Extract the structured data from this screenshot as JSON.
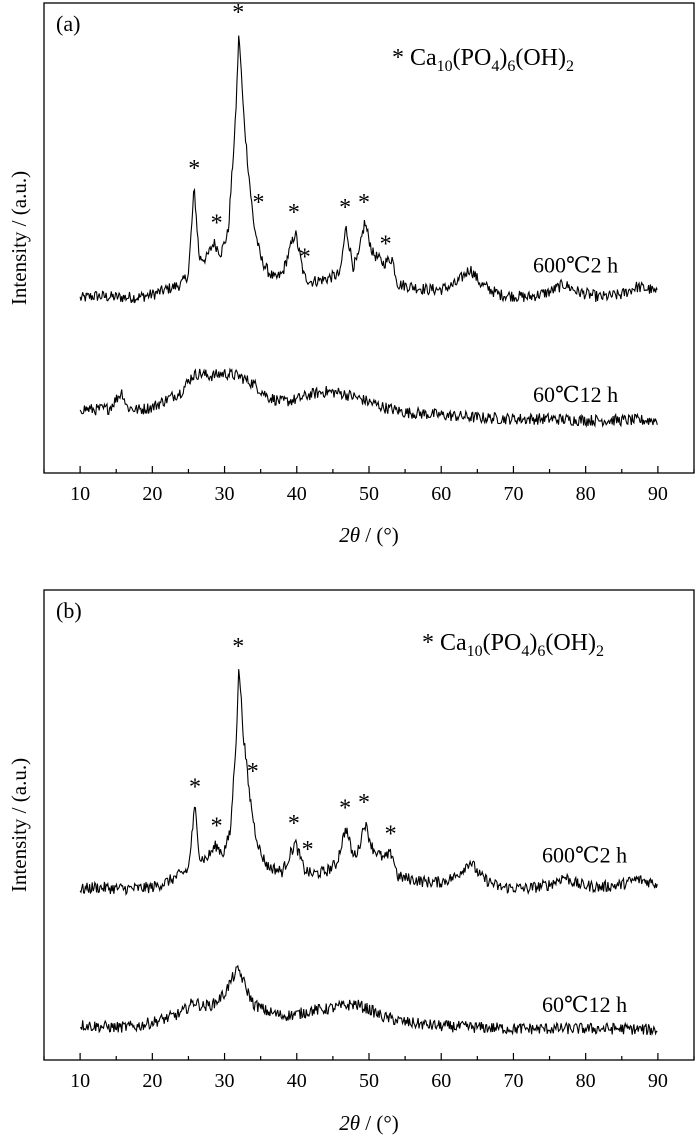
{
  "chart_data": [
    {
      "type": "line",
      "panel_label": "(a)",
      "xlabel_italic": "2θ",
      "xlabel_rest": " / (°)",
      "ylabel": "Intensity / (a.u.)",
      "xlim": [
        5,
        95
      ],
      "x_ticks": [
        10,
        20,
        30,
        40,
        50,
        60,
        70,
        80,
        90
      ],
      "y_ticks_shown": false,
      "legend": {
        "marker": "*",
        "base": "Ca",
        "sub1": "10",
        "mid1": "(PO",
        "sub2": "4",
        "mid2": ")",
        "sub3": "6",
        "mid3": "(OH)",
        "sub4": "2"
      },
      "series": [
        {
          "name": "600℃2 h",
          "offset": 0,
          "points": [
            [
              10,
              0.25
            ],
            [
              12,
              0.35
            ],
            [
              15,
              0.3
            ],
            [
              18,
              0.3
            ],
            [
              20,
              0.4
            ],
            [
              22,
              0.6
            ],
            [
              24,
              0.8
            ],
            [
              25,
              1.2
            ],
            [
              25.8,
              4.5
            ],
            [
              26.5,
              1.8
            ],
            [
              27.5,
              1.8
            ],
            [
              28.5,
              2.4
            ],
            [
              29.5,
              2.0
            ],
            [
              30.5,
              2.8
            ],
            [
              31.5,
              7.0
            ],
            [
              32.0,
              10.5
            ],
            [
              32.6,
              7.5
            ],
            [
              33.2,
              5.5
            ],
            [
              34.0,
              3.2
            ],
            [
              35,
              1.8
            ],
            [
              36,
              1.3
            ],
            [
              37,
              1.0
            ],
            [
              38,
              1.2
            ],
            [
              39.8,
              2.8
            ],
            [
              41,
              1.1
            ],
            [
              42,
              0.9
            ],
            [
              44,
              1.0
            ],
            [
              46,
              1.2
            ],
            [
              46.8,
              3.0
            ],
            [
              47.8,
              1.5
            ],
            [
              48.5,
              1.8
            ],
            [
              49.4,
              3.2
            ],
            [
              50.5,
              2.0
            ],
            [
              52,
              1.6
            ],
            [
              53.2,
              1.8
            ],
            [
              54,
              0.8
            ],
            [
              56,
              0.7
            ],
            [
              58,
              0.6
            ],
            [
              60,
              0.6
            ],
            [
              62,
              0.8
            ],
            [
              64,
              1.4
            ],
            [
              65.5,
              0.8
            ],
            [
              68,
              0.4
            ],
            [
              72,
              0.3
            ],
            [
              75,
              0.5
            ],
            [
              77,
              0.8
            ],
            [
              79,
              0.5
            ],
            [
              82,
              0.3
            ],
            [
              85,
              0.4
            ],
            [
              87,
              0.7
            ],
            [
              89,
              0.6
            ],
            [
              90,
              0.4
            ]
          ],
          "stars": [
            [
              25.8,
              "*"
            ],
            [
              28.9,
              "*"
            ],
            [
              31.9,
              "*"
            ],
            [
              34.7,
              "*"
            ],
            [
              39.6,
              "*"
            ],
            [
              41.1,
              "*"
            ],
            [
              46.7,
              "*"
            ],
            [
              49.3,
              "*"
            ],
            [
              52.3,
              "*"
            ]
          ]
        },
        {
          "name": "60℃12 h",
          "offset": -1,
          "points": [
            [
              10,
              0.25
            ],
            [
              12,
              0.2
            ],
            [
              14,
              0.25
            ],
            [
              15.8,
              0.9
            ],
            [
              16.5,
              0.3
            ],
            [
              18,
              0.2
            ],
            [
              20,
              0.3
            ],
            [
              22,
              0.6
            ],
            [
              24,
              0.9
            ],
            [
              25.5,
              1.5
            ],
            [
              26.5,
              1.6
            ],
            [
              28,
              1.5
            ],
            [
              30,
              1.6
            ],
            [
              32,
              1.5
            ],
            [
              34,
              1.2
            ],
            [
              36,
              0.7
            ],
            [
              38,
              0.5
            ],
            [
              40,
              0.6
            ],
            [
              42,
              0.8
            ],
            [
              44,
              0.9
            ],
            [
              46,
              0.85
            ],
            [
              48,
              0.7
            ],
            [
              50,
              0.5
            ],
            [
              52,
              0.3
            ],
            [
              55,
              0.1
            ],
            [
              60,
              0.0
            ],
            [
              65,
              -0.1
            ],
            [
              70,
              -0.15
            ],
            [
              75,
              -0.15
            ],
            [
              80,
              -0.2
            ],
            [
              85,
              -0.2
            ],
            [
              90,
              -0.2
            ]
          ],
          "stars": []
        }
      ]
    },
    {
      "type": "line",
      "panel_label": "(b)",
      "xlabel_italic": "2θ",
      "xlabel_rest": " / (°)",
      "ylabel": "Intensity / (a.u.)",
      "xlim": [
        5,
        95
      ],
      "x_ticks": [
        10,
        20,
        30,
        40,
        50,
        60,
        70,
        80,
        90
      ],
      "y_ticks_shown": false,
      "legend": {
        "marker": "*",
        "base": "Ca",
        "sub1": "10",
        "mid1": "(PO",
        "sub2": "4",
        "mid2": ")",
        "sub3": "6",
        "mid3": "(OH)",
        "sub4": "2"
      },
      "series": [
        {
          "name": "600℃2 h",
          "offset": 0,
          "points": [
            [
              10,
              0.2
            ],
            [
              12,
              0.3
            ],
            [
              15,
              0.25
            ],
            [
              18,
              0.25
            ],
            [
              20,
              0.3
            ],
            [
              22,
              0.5
            ],
            [
              24,
              0.8
            ],
            [
              25,
              1.0
            ],
            [
              25.9,
              3.4
            ],
            [
              26.6,
              1.4
            ],
            [
              27.5,
              1.4
            ],
            [
              28.8,
              1.9
            ],
            [
              29.8,
              1.6
            ],
            [
              30.8,
              2.4
            ],
            [
              31.6,
              6.0
            ],
            [
              32.0,
              8.8
            ],
            [
              32.6,
              6.2
            ],
            [
              33.4,
              4.0
            ],
            [
              34.2,
              2.5
            ],
            [
              35,
              1.6
            ],
            [
              36,
              1.1
            ],
            [
              38,
              0.9
            ],
            [
              39.8,
              2.0
            ],
            [
              41,
              1.0
            ],
            [
              42,
              0.8
            ],
            [
              44,
              0.9
            ],
            [
              45.5,
              1.2
            ],
            [
              46.8,
              2.6
            ],
            [
              47.8,
              1.5
            ],
            [
              48.5,
              1.7
            ],
            [
              49.4,
              2.8
            ],
            [
              50.5,
              1.8
            ],
            [
              52,
              1.4
            ],
            [
              53.2,
              1.6
            ],
            [
              54,
              0.7
            ],
            [
              56,
              0.6
            ],
            [
              58,
              0.5
            ],
            [
              60,
              0.5
            ],
            [
              62,
              0.7
            ],
            [
              64,
              1.3
            ],
            [
              65.5,
              0.7
            ],
            [
              68,
              0.3
            ],
            [
              72,
              0.25
            ],
            [
              75,
              0.4
            ],
            [
              77,
              0.7
            ],
            [
              79,
              0.4
            ],
            [
              82,
              0.3
            ],
            [
              85,
              0.4
            ],
            [
              87,
              0.6
            ],
            [
              89,
              0.5
            ],
            [
              90,
              0.4
            ]
          ],
          "stars": [
            [
              25.9,
              "*"
            ],
            [
              28.9,
              "*"
            ],
            [
              31.9,
              "*"
            ],
            [
              33.9,
              "*"
            ],
            [
              39.6,
              "*"
            ],
            [
              41.5,
              "*"
            ],
            [
              46.7,
              "*"
            ],
            [
              49.3,
              "*"
            ],
            [
              53.0,
              "*"
            ]
          ]
        },
        {
          "name": "60℃12 h",
          "offset": -1,
          "points": [
            [
              10,
              0.2
            ],
            [
              12,
              0.15
            ],
            [
              15,
              0.1
            ],
            [
              18,
              0.15
            ],
            [
              20,
              0.3
            ],
            [
              22,
              0.45
            ],
            [
              24,
              0.65
            ],
            [
              25.8,
              1.1
            ],
            [
              27,
              0.9
            ],
            [
              28.5,
              1.0
            ],
            [
              30,
              1.4
            ],
            [
              31.5,
              2.2
            ],
            [
              32.0,
              2.3
            ],
            [
              33,
              1.6
            ],
            [
              34,
              1.0
            ],
            [
              36,
              0.7
            ],
            [
              38,
              0.55
            ],
            [
              40,
              0.6
            ],
            [
              42,
              0.75
            ],
            [
              44,
              0.8
            ],
            [
              46,
              0.9
            ],
            [
              48,
              1.0
            ],
            [
              50,
              0.8
            ],
            [
              52,
              0.5
            ],
            [
              55,
              0.3
            ],
            [
              58,
              0.2
            ],
            [
              60,
              0.15
            ],
            [
              65,
              0.1
            ],
            [
              70,
              0.05
            ],
            [
              75,
              0.05
            ],
            [
              80,
              0.05
            ],
            [
              85,
              0.05
            ],
            [
              90,
              0.0
            ]
          ],
          "stars": []
        }
      ]
    }
  ]
}
